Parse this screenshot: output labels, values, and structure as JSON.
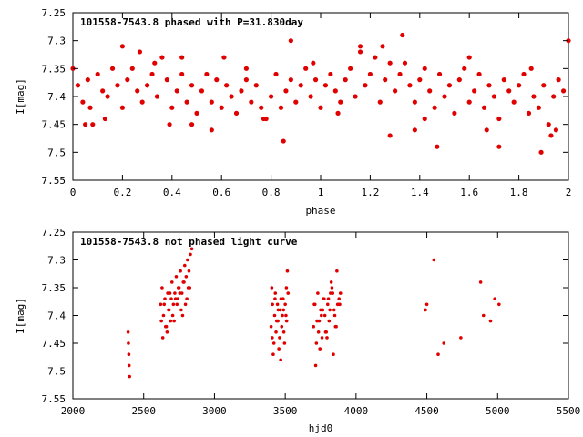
{
  "chart_data": [
    {
      "type": "scatter",
      "title": "101558-7543.8 phased with P=31.830day",
      "xlabel": "phase",
      "ylabel": "I[mag]",
      "xlim": [
        0,
        2
      ],
      "ylim": [
        7.25,
        7.55
      ],
      "y_inverted": true,
      "xticks": [
        "0",
        "0.2",
        "0.4",
        "0.6",
        "0.8",
        "1",
        "1.2",
        "1.4",
        "1.6",
        "1.8",
        "2"
      ],
      "yticks": [
        "7.25",
        "7.3",
        "7.35",
        "7.4",
        "7.45",
        "7.5",
        "7.55"
      ],
      "color": "#e00000",
      "series": [
        {
          "x": [
            0.0,
            0.02,
            0.04,
            0.06,
            0.07,
            0.08,
            0.1,
            0.12,
            0.14,
            0.16,
            0.18,
            0.2,
            0.22,
            0.24,
            0.26,
            0.28,
            0.3,
            0.32,
            0.34,
            0.36,
            0.38,
            0.4,
            0.42,
            0.44,
            0.46,
            0.48,
            0.5,
            0.52,
            0.54,
            0.56,
            0.58,
            0.6,
            0.62,
            0.64,
            0.66,
            0.68,
            0.7,
            0.72,
            0.74,
            0.76,
            0.78,
            0.8,
            0.82,
            0.84,
            0.86,
            0.88,
            0.9,
            0.92,
            0.94,
            0.96,
            0.98,
            1.0,
            1.02,
            1.04,
            1.06,
            1.08,
            1.1,
            1.12,
            1.14,
            1.16,
            1.18,
            1.2,
            1.22,
            1.24,
            1.26,
            1.28,
            1.3,
            1.32,
            1.34,
            1.36,
            1.38,
            1.4,
            1.42,
            1.44,
            1.46,
            1.48,
            1.5,
            1.52,
            1.54,
            1.56,
            1.58,
            1.6,
            1.62,
            1.64,
            1.66,
            1.68,
            1.7,
            1.72,
            1.74,
            1.76,
            1.78,
            1.8,
            1.82,
            1.84,
            1.86,
            1.88,
            1.9,
            1.92,
            1.94,
            1.96,
            1.98,
            2.0,
            0.27,
            0.33,
            0.61,
            0.88,
            1.16,
            1.33,
            1.47,
            1.89,
            0.05,
            0.39,
            0.56,
            0.85,
            1.28,
            1.38,
            1.72,
            1.93,
            0.2,
            0.44,
            0.7,
            0.97,
            1.25,
            1.6,
            1.85,
            0.13,
            0.48,
            0.77,
            1.07,
            1.42,
            1.67,
            1.95
          ],
          "y": [
            7.35,
            7.38,
            7.41,
            7.37,
            7.42,
            7.45,
            7.36,
            7.39,
            7.4,
            7.35,
            7.38,
            7.42,
            7.37,
            7.35,
            7.39,
            7.41,
            7.38,
            7.36,
            7.4,
            7.33,
            7.37,
            7.42,
            7.39,
            7.36,
            7.41,
            7.38,
            7.43,
            7.39,
            7.36,
            7.41,
            7.37,
            7.42,
            7.38,
            7.4,
            7.43,
            7.39,
            7.37,
            7.41,
            7.38,
            7.42,
            7.44,
            7.4,
            7.36,
            7.42,
            7.39,
            7.37,
            7.41,
            7.38,
            7.35,
            7.4,
            7.37,
            7.42,
            7.38,
            7.36,
            7.39,
            7.41,
            7.37,
            7.35,
            7.4,
            7.32,
            7.38,
            7.36,
            7.33,
            7.41,
            7.37,
            7.34,
            7.39,
            7.36,
            7.34,
            7.38,
            7.41,
            7.37,
            7.35,
            7.39,
            7.42,
            7.36,
            7.4,
            7.38,
            7.43,
            7.37,
            7.35,
            7.41,
            7.39,
            7.36,
            7.42,
            7.38,
            7.4,
            7.44,
            7.37,
            7.39,
            7.41,
            7.38,
            7.36,
            7.43,
            7.4,
            7.42,
            7.38,
            7.45,
            7.4,
            7.37,
            7.39,
            7.3,
            7.32,
            7.34,
            7.33,
            7.3,
            7.31,
            7.29,
            7.49,
            7.5,
            7.45,
            7.45,
            7.46,
            7.48,
            7.47,
            7.46,
            7.49,
            7.47,
            7.31,
            7.33,
            7.35,
            7.34,
            7.31,
            7.33,
            7.35,
            7.44,
            7.45,
            7.44,
            7.43,
            7.44,
            7.46,
            7.46
          ]
        }
      ]
    },
    {
      "type": "scatter",
      "title": "101558-7543.8 not phased light curve",
      "xlabel": "hjd0",
      "ylabel": "I[mag]",
      "xlim": [
        2000,
        5500
      ],
      "ylim": [
        7.25,
        7.55
      ],
      "y_inverted": true,
      "xticks": [
        "2000",
        "2500",
        "3000",
        "3500",
        "4000",
        "4500",
        "5000",
        "5500"
      ],
      "yticks": [
        "7.25",
        "7.3",
        "7.35",
        "7.4",
        "7.45",
        "7.5",
        "7.55"
      ],
      "color": "#e00000",
      "series": [
        {
          "x": [
            2390,
            2392,
            2395,
            2397,
            2400,
            2620,
            2630,
            2640,
            2650,
            2660,
            2670,
            2680,
            2690,
            2700,
            2710,
            2720,
            2730,
            2740,
            2750,
            2760,
            2770,
            2780,
            2790,
            2800,
            2810,
            2820,
            2830,
            2840,
            2625,
            2645,
            2665,
            2685,
            2705,
            2725,
            2745,
            2765,
            2785,
            2805,
            2825,
            2635,
            2655,
            2675,
            2695,
            2715,
            2735,
            2755,
            2775,
            2795,
            2815,
            3400,
            3410,
            3420,
            3430,
            3440,
            3450,
            3460,
            3470,
            3480,
            3490,
            3500,
            3510,
            3520,
            3405,
            3415,
            3425,
            3435,
            3445,
            3455,
            3465,
            3475,
            3485,
            3495,
            3505,
            3515,
            3408,
            3428,
            3448,
            3468,
            3488,
            3508,
            3700,
            3710,
            3720,
            3730,
            3740,
            3750,
            3760,
            3770,
            3780,
            3790,
            3800,
            3810,
            3820,
            3830,
            3840,
            3850,
            3860,
            3870,
            3880,
            3890,
            3705,
            3725,
            3745,
            3765,
            3785,
            3805,
            3825,
            3845,
            3865,
            3885,
            3715,
            3735,
            3755,
            3775,
            3795,
            3815,
            3835,
            3855,
            3875,
            4490,
            4500,
            4550,
            4580,
            4620,
            4740,
            4880,
            4900,
            4950,
            4980,
            5010
          ],
          "y": [
            7.43,
            7.45,
            7.47,
            7.49,
            7.51,
            7.38,
            7.35,
            7.4,
            7.37,
            7.42,
            7.36,
            7.39,
            7.41,
            7.34,
            7.38,
            7.36,
            7.33,
            7.37,
            7.35,
            7.32,
            7.36,
            7.34,
            7.31,
            7.33,
            7.3,
            7.32,
            7.29,
            7.28,
            7.41,
            7.38,
            7.43,
            7.36,
            7.4,
            7.37,
            7.35,
            7.39,
            7.34,
            7.37,
            7.35,
            7.44,
            7.42,
            7.39,
            7.37,
            7.41,
            7.38,
            7.36,
            7.4,
            7.38,
            7.35,
            7.42,
            7.38,
            7.45,
            7.36,
            7.41,
            7.39,
            7.44,
            7.37,
            7.4,
            7.43,
            7.38,
            7.41,
            7.36,
            7.35,
            7.47,
            7.4,
            7.43,
            7.38,
            7.46,
            7.39,
            7.42,
            7.37,
            7.45,
            7.4,
            7.32,
            7.44,
            7.37,
            7.41,
            7.48,
            7.39,
            7.35,
            7.42,
            7.38,
            7.45,
            7.36,
            7.41,
            7.39,
            7.44,
            7.37,
            7.4,
            7.43,
            7.38,
            7.41,
            7.36,
            7.35,
            7.47,
            7.4,
            7.42,
            7.38,
            7.37,
            7.36,
            7.38,
            7.41,
            7.46,
            7.39,
            7.43,
            7.37,
            7.34,
            7.39,
            7.32,
            7.38,
            7.49,
            7.43,
            7.4,
            7.37,
            7.44,
            7.39,
            7.36,
            7.42,
            7.38,
            7.39,
            7.38,
            7.3,
            7.47,
            7.45,
            7.44,
            7.34,
            7.4,
            7.41,
            7.37,
            7.38
          ]
        }
      ]
    }
  ]
}
